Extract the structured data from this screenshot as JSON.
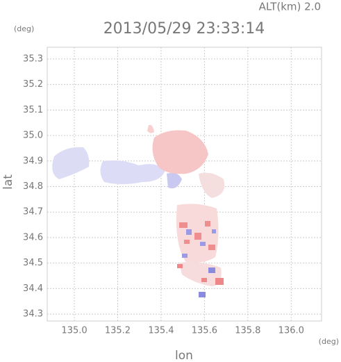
{
  "chart_data": {
    "type": "radar-map",
    "title": "2013/05/29 23:33:14",
    "altitude_label": "ALT(km) 2.0",
    "y_unit": "(deg)",
    "x_unit": "(deg)",
    "x_label": "lon",
    "y_label": "lat",
    "xlim": [
      134.875,
      136.14
    ],
    "ylim": [
      34.273,
      35.346
    ],
    "xticks": [
      {
        "value": 135.0,
        "label": "135.0"
      },
      135.2,
      135.4,
      135.6,
      135.8,
      {
        "value": 136.0,
        "label": "136.0"
      }
    ],
    "yticks": [
      34.3,
      34.4,
      34.5,
      34.6,
      34.7,
      34.8,
      34.9,
      {
        "value": 35.0,
        "label": "35.0"
      },
      35.1,
      35.2,
      35.3
    ],
    "grid": true
  }
}
